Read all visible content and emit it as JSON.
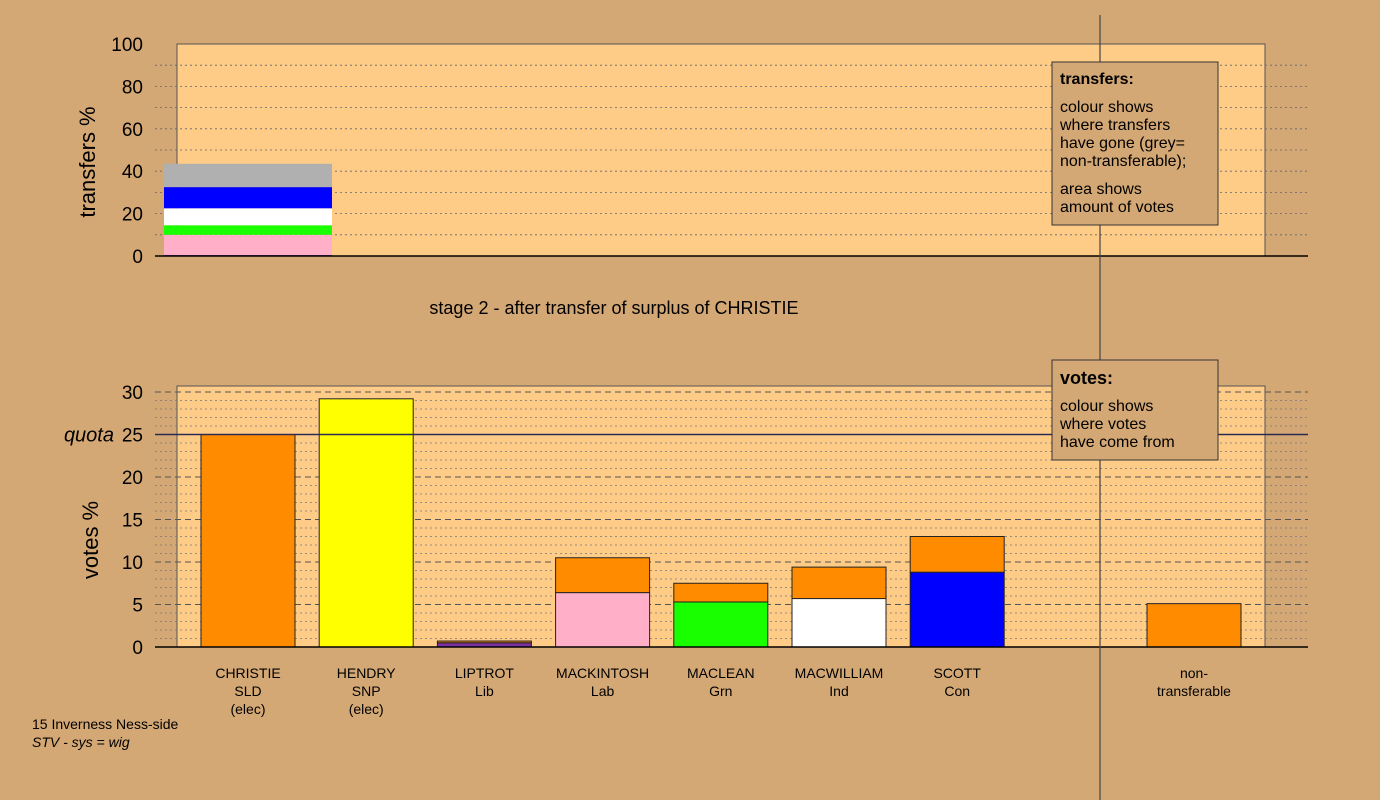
{
  "colors": {
    "background": "#d4a874",
    "plot_area": "#ffcc88",
    "orange": "#ff8c00",
    "yellow": "#ffff00",
    "purple": "#7b2fa0",
    "pink": "#ffb0c8",
    "green": "#1aff00",
    "white": "#ffffff",
    "blue": "#0000ff",
    "grey": "#b0b0b0"
  },
  "stage_title": "stage 2 - after transfer of surplus of CHRISTIE",
  "footer": {
    "line1": "15 Inverness Ness-side",
    "line2": "STV - sys = wig"
  },
  "transfers_legend": {
    "heading": "transfers:",
    "line1": "colour shows",
    "line2": "where transfers",
    "line3": "have gone (grey=",
    "line4": "non-transferable);",
    "line5": "area shows",
    "line6": "amount of votes"
  },
  "votes_legend": {
    "heading": "votes:",
    "line1": "colour shows",
    "line2": "where votes",
    "line3": "have come from"
  },
  "chart_data": [
    {
      "type": "bar",
      "stacked": true,
      "ylabel": "transfers %",
      "ylim": [
        0,
        100
      ],
      "yticks": [
        0,
        20,
        40,
        60,
        80,
        100
      ],
      "source_candidate": "CHRISTIE",
      "segments": [
        {
          "to": "LIPTROT",
          "color": "#7b2fa0",
          "value": 0.5
        },
        {
          "to": "MACKINTOSH",
          "color": "#ffb0c8",
          "value": 9.5
        },
        {
          "to": "MACLEAN",
          "color": "#1aff00",
          "value": 4.5
        },
        {
          "to": "MACWILLIAM",
          "color": "#ffffff",
          "value": 8.0
        },
        {
          "to": "SCOTT",
          "color": "#0000ff",
          "value": 10.0
        },
        {
          "to": "non-transferable",
          "color": "#b0b0b0",
          "value": 11.0
        }
      ]
    },
    {
      "type": "bar",
      "stacked": true,
      "ylabel": "votes %",
      "ylim": [
        0,
        30
      ],
      "yticks": [
        0,
        5,
        10,
        15,
        20,
        25,
        30
      ],
      "quota": 25,
      "quota_label": "quota",
      "bars": [
        {
          "name": "CHRISTIE",
          "party": "SLD",
          "status": "(elec)",
          "segments": [
            {
              "color": "#ff8c00",
              "value": 25.0
            }
          ]
        },
        {
          "name": "HENDRY",
          "party": "SNP",
          "status": "(elec)",
          "segments": [
            {
              "color": "#ffff00",
              "value": 29.2
            }
          ]
        },
        {
          "name": "LIPTROT",
          "party": "Lib",
          "status": "",
          "segments": [
            {
              "color": "#7b2fa0",
              "value": 0.5
            },
            {
              "color": "#ff8c00",
              "value": 0.2
            }
          ]
        },
        {
          "name": "MACKINTOSH",
          "party": "Lab",
          "status": "",
          "segments": [
            {
              "color": "#ffb0c8",
              "value": 6.4
            },
            {
              "color": "#ff8c00",
              "value": 4.1
            }
          ]
        },
        {
          "name": "MACLEAN",
          "party": "Grn",
          "status": "",
          "segments": [
            {
              "color": "#1aff00",
              "value": 5.3
            },
            {
              "color": "#ff8c00",
              "value": 2.2
            }
          ]
        },
        {
          "name": "MACWILLIAM",
          "party": "Ind",
          "status": "",
          "segments": [
            {
              "color": "#ffffff",
              "value": 5.7
            },
            {
              "color": "#ff8c00",
              "value": 3.7
            }
          ]
        },
        {
          "name": "SCOTT",
          "party": "Con",
          "status": "",
          "segments": [
            {
              "color": "#0000ff",
              "value": 8.8
            },
            {
              "color": "#ff8c00",
              "value": 4.2
            }
          ]
        }
      ],
      "non_transferable": {
        "label1": "non-",
        "label2": "transferable",
        "segments": [
          {
            "color": "#ff8c00",
            "value": 5.1
          }
        ]
      }
    }
  ]
}
